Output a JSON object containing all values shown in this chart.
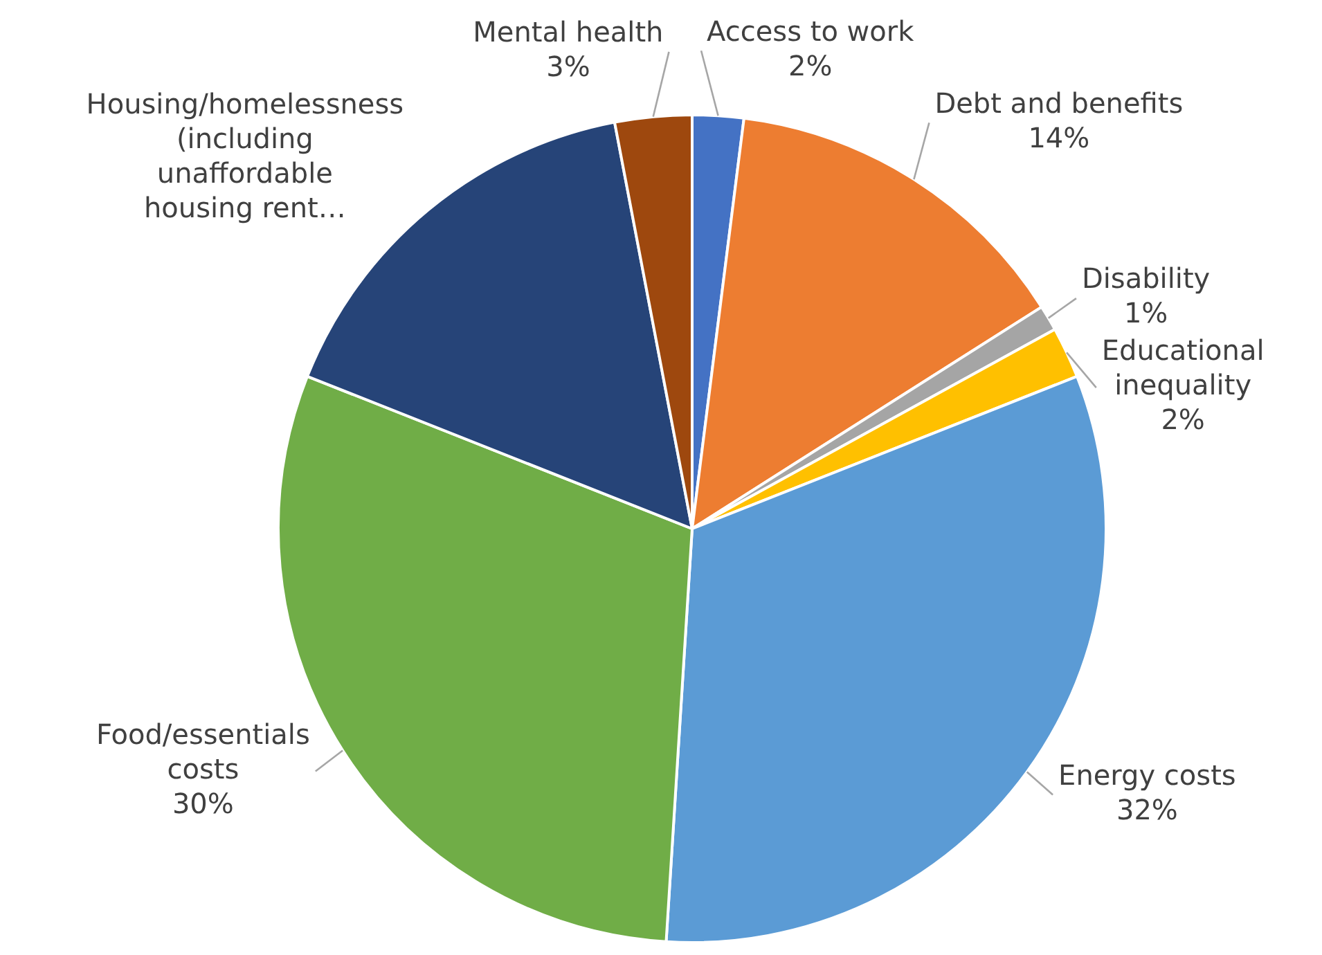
{
  "chart_data": {
    "type": "pie",
    "categories": [
      "Access to work",
      "Debt and benefits",
      "Disability",
      "Educational inequality",
      "Energy costs",
      "Food/essentials costs",
      "Housing/homelessness (including unaffordable housing rent…",
      "Mental health"
    ],
    "values": [
      2,
      14,
      1,
      2,
      32,
      30,
      16,
      3
    ],
    "colors": [
      "#4472c4",
      "#ed7d31",
      "#a5a5a5",
      "#ffc000",
      "#5b9bd5",
      "#70ad47",
      "#264478",
      "#9e480e"
    ],
    "value_labels": [
      "2%",
      "14%",
      "1%",
      "2%",
      "32%",
      "30%",
      null,
      "3%"
    ],
    "legend": false
  }
}
